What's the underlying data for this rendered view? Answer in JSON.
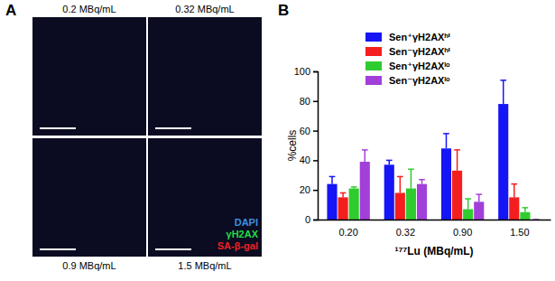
{
  "panel_a": {
    "letter": "A",
    "images": [
      {
        "label": "0.2 MBq/mL"
      },
      {
        "label": "0.32 MBq/mL"
      },
      {
        "label": "0.9 MBq/mL"
      },
      {
        "label": "1.5 MBq/mL"
      }
    ],
    "stains": [
      {
        "name": "DAPI",
        "color": "#3d8fe0"
      },
      {
        "name": "γH2AX",
        "color": "#22dd44"
      },
      {
        "name": "SA-β-gal",
        "color": "#ee2222"
      }
    ]
  },
  "chart_data": {
    "type": "bar",
    "title": "B",
    "x_label": "¹⁷⁷Lu (MBq/mL)",
    "y_label": "%cells",
    "categories": [
      "0.20",
      "0.32",
      "0.90",
      "1.50"
    ],
    "series": [
      {
        "name": "Sen⁺γH2AXʰⁱ",
        "color": "#1515f5",
        "values": [
          24,
          37,
          48,
          78
        ],
        "errors": [
          5,
          3,
          10,
          16
        ]
      },
      {
        "name": "Sen⁻γH2AXʰⁱ",
        "color": "#f51e1e",
        "values": [
          15,
          18,
          33,
          15
        ],
        "errors": [
          3,
          11,
          14,
          9
        ]
      },
      {
        "name": "Sen⁺γH2AXˡᵒ",
        "color": "#2fcc2f",
        "values": [
          21,
          21,
          7,
          5
        ],
        "errors": [
          1,
          13,
          7,
          3
        ]
      },
      {
        "name": "Sen⁻γH2AXˡᵒ",
        "color": "#a23fd8",
        "values": [
          39,
          24,
          12,
          0
        ],
        "errors": [
          8,
          3,
          5,
          0
        ]
      }
    ],
    "ylim": [
      0,
      100
    ],
    "yticks": [
      0,
      20,
      40,
      60,
      80,
      100
    ],
    "grid": false,
    "legend": "top"
  }
}
